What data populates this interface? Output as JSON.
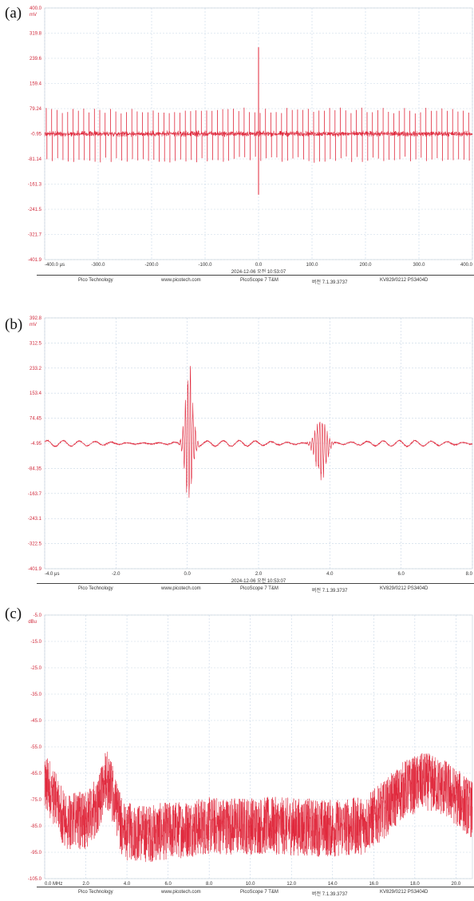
{
  "footer": {
    "company": "Pico Technology",
    "website": "www.picotech.com",
    "software": "PicoScope 7 T&M",
    "version": "버전 7.1.39.3737",
    "device": "KV829/0212 PS3404D"
  },
  "colors": {
    "trace": "#e0263a",
    "axis_text": "#d0283a",
    "grid": "#c8d7e6"
  },
  "chart_data": [
    {
      "panel": "(a)",
      "type": "line",
      "unit": "mV",
      "x_unit": "μs",
      "timestamp": "2024-12-06 오전 10:53:07",
      "xlim": [
        -400,
        400
      ],
      "ylim": [
        -401.9,
        400
      ],
      "xticks": [
        "-400.0 μs",
        "-300.0",
        "-200.0",
        "-100.0",
        "0.0",
        "100.0",
        "200.0",
        "300.0",
        "400.0"
      ],
      "yticks": [
        "400.0",
        "319.8",
        "239.6",
        "159.4",
        "79.24",
        "-0.95",
        "-81.14",
        "-161.3",
        "-241.5",
        "-321.7",
        "-401.9"
      ],
      "baseline_mv": -0.95,
      "noise_amplitude_mv": 12,
      "pulse_interval_us": 10,
      "pulse_peak_mv": 75,
      "pulse_trough_mv": -85,
      "central_spike": {
        "x": 0,
        "peak_mv": 275,
        "trough_mv": -195
      }
    },
    {
      "panel": "(b)",
      "type": "line",
      "unit": "mV",
      "x_unit": "μs",
      "timestamp": "2024-12-06 오전 10:53:07",
      "xlim": [
        -4,
        8
      ],
      "ylim": [
        -401.9,
        392.8
      ],
      "xticks": [
        "-4.0 μs",
        "-2.0",
        "0.0",
        "2.0",
        "4.0",
        "6.0",
        "8.0"
      ],
      "yticks": [
        "392.8",
        "312.5",
        "233.2",
        "153.4",
        "74.45",
        "-4.95",
        "-84.35",
        "-163.7",
        "-243.1",
        "-322.5",
        "-401.9"
      ],
      "baseline_mv": -4.95,
      "bursts": [
        {
          "x_center": 0.05,
          "peak_mv": 270,
          "trough_mv": -210,
          "width_us": 0.25
        },
        {
          "x_center": 3.75,
          "peak_mv": 90,
          "trough_mv": -130,
          "width_us": 0.35
        }
      ]
    },
    {
      "panel": "(c)",
      "type": "line",
      "unit": "dBu",
      "x_unit": "MHz",
      "timestamp": "2024-12-06 오전 10:53:07",
      "xlim": [
        0,
        20.8
      ],
      "ylim": [
        -105,
        -5
      ],
      "xticks": [
        "0.0 MHz",
        "2.0",
        "4.0",
        "6.0",
        "8.0",
        "10.0",
        "12.0",
        "14.0",
        "16.0",
        "18.0",
        "20.0"
      ],
      "yticks": [
        "-5.0",
        "-15.0",
        "-25.0",
        "-35.0",
        "-45.0",
        "-55.0",
        "-65.0",
        "-75.0",
        "-85.0",
        "-95.0",
        "-105.0"
      ],
      "envelope_points": [
        [
          0,
          -68
        ],
        [
          1,
          -84
        ],
        [
          2,
          -84
        ],
        [
          2.6,
          -78
        ],
        [
          3.0,
          -68
        ],
        [
          3.3,
          -74
        ],
        [
          3.8,
          -88
        ],
        [
          5,
          -89
        ],
        [
          8,
          -86
        ],
        [
          11,
          -86
        ],
        [
          14,
          -87
        ],
        [
          15.5,
          -86
        ],
        [
          16.5,
          -80
        ],
        [
          17.5,
          -72
        ],
        [
          18.5,
          -69
        ],
        [
          19.5,
          -72
        ],
        [
          20.8,
          -80
        ]
      ]
    }
  ]
}
